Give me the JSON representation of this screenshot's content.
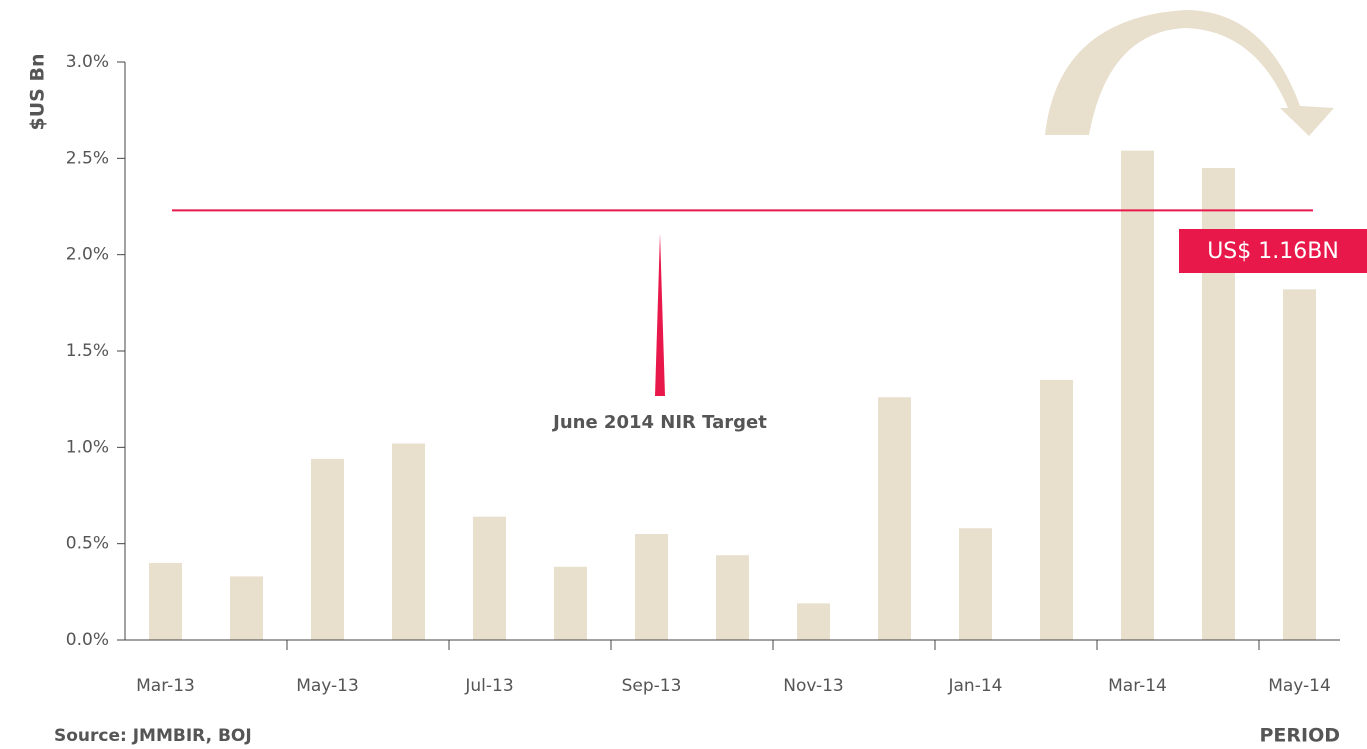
{
  "chart_data": {
    "type": "bar",
    "y_label": "$US Bn",
    "x_label": "PERIOD",
    "source": "Source: JMMBIR, BOJ",
    "categories": [
      "Mar-13",
      null,
      "May-13",
      null,
      "Jul-13",
      null,
      "Sep-13",
      null,
      "Nov-13",
      null,
      "Jan-14",
      null,
      "Mar-14",
      null,
      "May-14"
    ],
    "values": [
      0.4,
      0.33,
      0.94,
      1.02,
      0.64,
      0.38,
      0.55,
      0.44,
      0.19,
      1.26,
      0.58,
      1.35,
      2.54,
      2.45,
      1.82
    ],
    "color": "#e8dfcd",
    "ylim": [
      0,
      3
    ],
    "yticks": [
      {
        "value": 0,
        "label": "0.0%"
      },
      {
        "value": 0.5,
        "label": "0.5%"
      },
      {
        "value": 1,
        "label": "1.0%"
      },
      {
        "value": 1.5,
        "label": "1.5%"
      },
      {
        "value": 2,
        "label": "2.0%"
      },
      {
        "value": 2.5,
        "label": "2.5%"
      },
      {
        "value": 3,
        "label": "3.0%"
      }
    ],
    "target": {
      "value": 2.23,
      "label": "June 2014 NIR Target",
      "color": "#e8194a"
    },
    "annotation": "US$ 1.16BN"
  }
}
